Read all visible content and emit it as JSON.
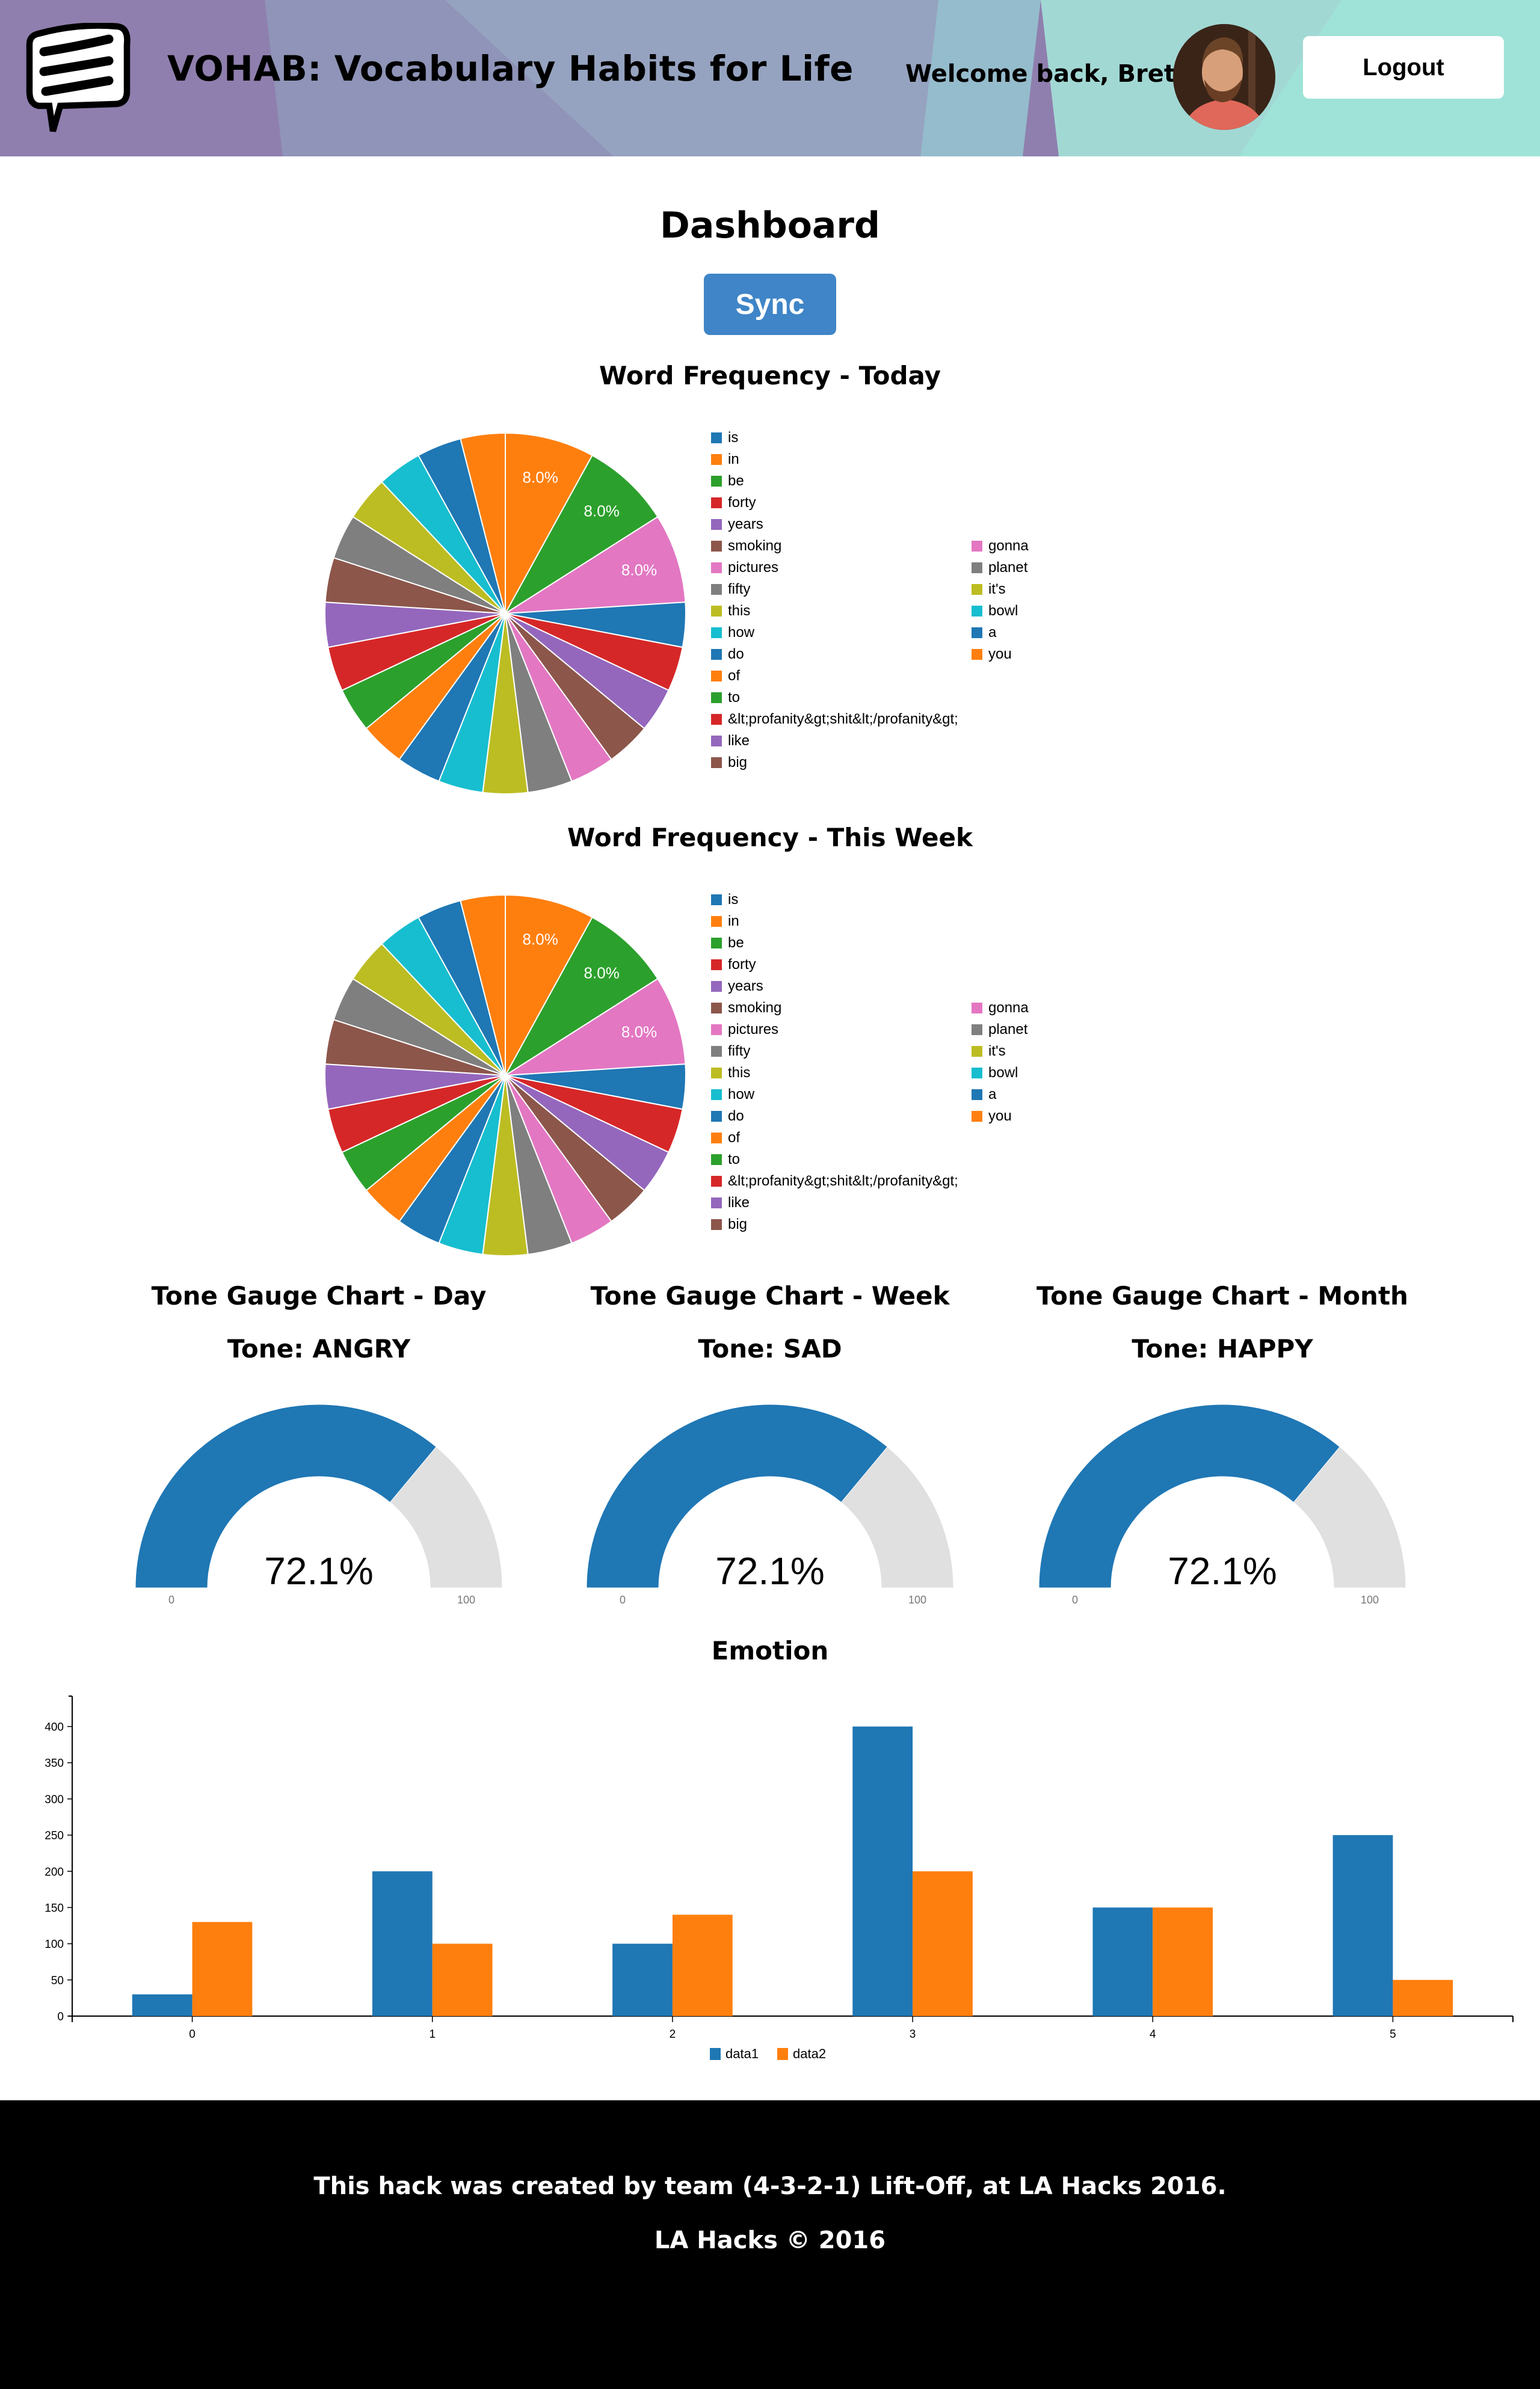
{
  "header": {
    "app_title": "VOHAB: Vocabulary Habits for Life",
    "welcome_text": "Welcome back, Brett",
    "logout_label": "Logout",
    "logo_icon": "speech-bubble-icon",
    "avatar_alt": "user avatar"
  },
  "main": {
    "page_title": "Dashboard",
    "sync_label": "Sync",
    "sync_color": "#3f85c7"
  },
  "palette": [
    "#1f77b4",
    "#ff7f0e",
    "#2ca02c",
    "#d62728",
    "#9467bd",
    "#8c564b",
    "#e377c2",
    "#7f7f7f",
    "#bcbd22",
    "#17becf"
  ],
  "chart_data": [
    {
      "id": "word-frequency-today",
      "type": "pie",
      "title": "Word Frequency - Today",
      "legend_position": "right",
      "labels": [
        "is",
        "in",
        "be",
        "forty",
        "years",
        "smoking",
        "pictures",
        "fifty",
        "this",
        "how",
        "do",
        "of",
        "to",
        "&lt;profanity&gt;shit&lt;/profanity&gt;",
        "like",
        "big",
        "gonna",
        "planet",
        "it's",
        "bowl",
        "a",
        "you"
      ],
      "values": [
        4,
        8,
        8,
        4,
        4,
        4,
        4,
        4,
        4,
        4,
        4,
        4,
        4,
        4,
        4,
        4,
        8,
        4,
        4,
        4,
        4,
        4
      ],
      "value_unit": "percent",
      "shown_labels": [
        "8.0%",
        "8.0%",
        "8.0%"
      ]
    },
    {
      "id": "word-frequency-week",
      "type": "pie",
      "title": "Word Frequency - This Week",
      "legend_position": "right",
      "labels": [
        "is",
        "in",
        "be",
        "forty",
        "years",
        "smoking",
        "pictures",
        "fifty",
        "this",
        "how",
        "do",
        "of",
        "to",
        "&lt;profanity&gt;shit&lt;/profanity&gt;",
        "like",
        "big",
        "gonna",
        "planet",
        "it's",
        "bowl",
        "a",
        "you"
      ],
      "values": [
        4,
        8,
        8,
        4,
        4,
        4,
        4,
        4,
        4,
        4,
        4,
        4,
        4,
        4,
        4,
        4,
        8,
        4,
        4,
        4,
        4,
        4
      ],
      "value_unit": "percent",
      "shown_labels": [
        "8.0%",
        "8.0%",
        "8.0%"
      ]
    },
    {
      "id": "tone-gauge-day",
      "type": "gauge",
      "title": "Tone Gauge Chart - Day",
      "tone_label": "Tone: ANGRY",
      "value": 72.1,
      "value_label": "72.1%",
      "min": 0,
      "max": 100,
      "min_label": "0",
      "max_label": "100",
      "fill_color": "#1f77b4",
      "track_color": "#e0e0e0"
    },
    {
      "id": "tone-gauge-week",
      "type": "gauge",
      "title": "Tone Gauge Chart - Week",
      "tone_label": "Tone: SAD",
      "value": 72.1,
      "value_label": "72.1%",
      "min": 0,
      "max": 100,
      "min_label": "0",
      "max_label": "100",
      "fill_color": "#1f77b4",
      "track_color": "#e0e0e0"
    },
    {
      "id": "tone-gauge-month",
      "type": "gauge",
      "title": "Tone Gauge Chart - Month",
      "tone_label": "Tone: HAPPY",
      "value": 72.1,
      "value_label": "72.1%",
      "min": 0,
      "max": 100,
      "min_label": "0",
      "max_label": "100",
      "fill_color": "#1f77b4",
      "track_color": "#e0e0e0"
    },
    {
      "id": "emotion",
      "type": "bar",
      "title": "Emotion",
      "categories": [
        "0",
        "1",
        "2",
        "3",
        "4",
        "5"
      ],
      "series": [
        {
          "name": "data1",
          "color": "#1f77b4",
          "values": [
            30,
            200,
            100,
            400,
            150,
            250
          ]
        },
        {
          "name": "data2",
          "color": "#ff7f0e",
          "values": [
            130,
            100,
            140,
            200,
            150,
            50
          ]
        }
      ],
      "yticks": [
        "0",
        "50",
        "100",
        "150",
        "200",
        "250",
        "300",
        "350",
        "400"
      ],
      "ylim": [
        0,
        442
      ],
      "xlabel": "",
      "ylabel": "",
      "grid": false,
      "legend_position": "bottom-left"
    }
  ],
  "footer": {
    "credit": "This hack was created by team (4-3-2-1) Lift-Off, at LA Hacks 2016.",
    "copyright": "LA Hacks © 2016"
  }
}
